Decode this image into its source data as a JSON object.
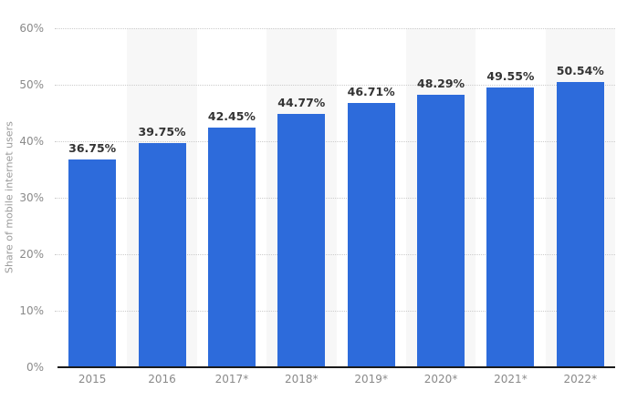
{
  "chart_data": {
    "type": "bar",
    "categories": [
      "2015",
      "2016",
      "2017*",
      "2018*",
      "2019*",
      "2020*",
      "2021*",
      "2022*"
    ],
    "values": [
      36.75,
      39.75,
      42.45,
      44.77,
      46.71,
      48.29,
      49.55,
      50.54
    ],
    "value_labels": [
      "36.75%",
      "39.75%",
      "42.45%",
      "44.77%",
      "46.71%",
      "48.29%",
      "49.55%",
      "50.54%"
    ],
    "title": "",
    "xlabel": "",
    "ylabel": "Share of mobile internet users",
    "ylim": [
      0,
      60
    ],
    "yticks": [
      0,
      10,
      20,
      30,
      40,
      50,
      60
    ],
    "ytick_labels": [
      "0%",
      "10%",
      "20%",
      "30%",
      "40%",
      "50%",
      "60%"
    ],
    "grid": "horizontal-dotted",
    "legend": "none",
    "striped_columns": [
      1,
      3,
      5,
      7
    ],
    "colors": {
      "bar": "#2d6bdb",
      "column_stripe": "#f7f7f7",
      "gridline": "#cccccc",
      "axis_line": "#1a1a1a",
      "tick_label": "#8a8a8a",
      "value_label": "#333333",
      "background": "#ffffff"
    }
  }
}
